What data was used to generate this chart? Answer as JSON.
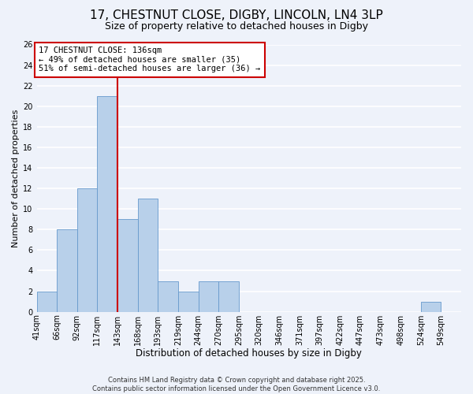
{
  "title": "17, CHESTNUT CLOSE, DIGBY, LINCOLN, LN4 3LP",
  "subtitle": "Size of property relative to detached houses in Digby",
  "xlabel": "Distribution of detached houses by size in Digby",
  "ylabel": "Number of detached properties",
  "bin_labels": [
    "41sqm",
    "66sqm",
    "92sqm",
    "117sqm",
    "143sqm",
    "168sqm",
    "193sqm",
    "219sqm",
    "244sqm",
    "270sqm",
    "295sqm",
    "320sqm",
    "346sqm",
    "371sqm",
    "397sqm",
    "422sqm",
    "447sqm",
    "473sqm",
    "498sqm",
    "524sqm",
    "549sqm"
  ],
  "bar_values": [
    2,
    8,
    12,
    21,
    9,
    11,
    3,
    2,
    3,
    3,
    0,
    0,
    0,
    0,
    0,
    0,
    0,
    0,
    0,
    1,
    0
  ],
  "bar_color": "#b8d0ea",
  "bar_edgecolor": "#6699cc",
  "vline_x_index": 3.5,
  "vline_color": "#cc0000",
  "annotation_text": "17 CHESTNUT CLOSE: 136sqm\n← 49% of detached houses are smaller (35)\n51% of semi-detached houses are larger (36) →",
  "annotation_box_edgecolor": "#cc0000",
  "annotation_box_facecolor": "#ffffff",
  "ylim": [
    0,
    26
  ],
  "yticks": [
    0,
    2,
    4,
    6,
    8,
    10,
    12,
    14,
    16,
    18,
    20,
    22,
    24,
    26
  ],
  "background_color": "#eef2fa",
  "grid_color": "#ffffff",
  "footer_text": "Contains HM Land Registry data © Crown copyright and database right 2025.\nContains public sector information licensed under the Open Government Licence v3.0.",
  "title_fontsize": 11,
  "subtitle_fontsize": 9,
  "xlabel_fontsize": 8.5,
  "ylabel_fontsize": 8,
  "tick_fontsize": 7,
  "annotation_fontsize": 7.5,
  "footer_fontsize": 6
}
